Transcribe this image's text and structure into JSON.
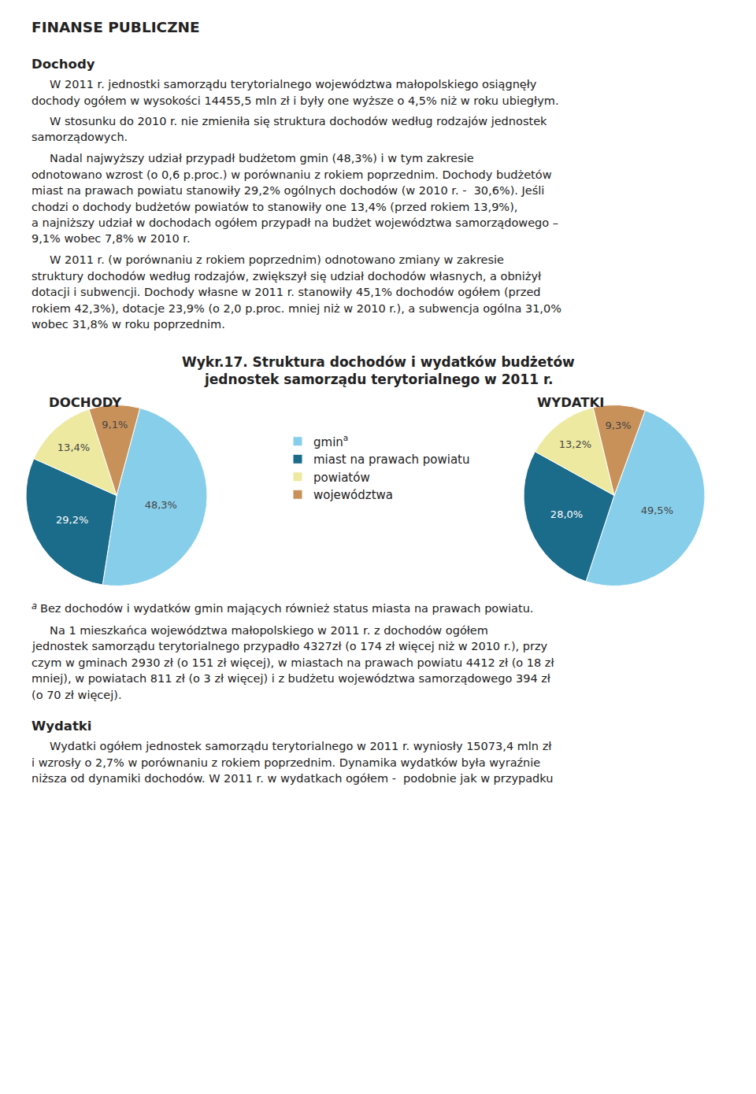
{
  "title": "FINANSE PUBLICZNE",
  "annotations_before": [
    {
      "heading": "Dochody"
    },
    {
      "paragraph": [
        "     W 2011 r. jednostki samorządu terytorialnego województwa małopolskiego osiągnęły",
        "dochody ogółem w wysokości 14455,5 mln zł i były one wyższe o 4,5% niż w roku ubiegłym."
      ]
    },
    {
      "paragraph": [
        "     W stosunku do 2010 r. nie zmieniła się struktura dochodów według rodzajów jednostek",
        "samorządowych."
      ]
    },
    {
      "paragraph": [
        "     Nadal najwyższy udział przypadł budżetom gmin (48,3%) i w tym zakresie",
        "odnotowano wzrost (o 0,6 p.proc.) w porównaniu z rokiem poprzednim. Dochody budżetów",
        "miast na prawach powiatu stanowiły 29,2% ogólnych dochodów (w 2010 r. -  30,6%). Jeśli",
        "chodzi o dochody budżetów powiatów to stanowiły one 13,4% (przed rokiem 13,9%),",
        "a najniższy udział w dochodach ogółem przypadł na budżet województwa samorządowego –",
        "9,1% wobec 7,8% w 2010 r."
      ]
    },
    {
      "paragraph": [
        "     W 2011 r. (w porównaniu z rokiem poprzednim) odnotowano zmiany w zakresie",
        "struktury dochodów według rodzajów, zwiększył się udział dochodów własnych, a obniżył",
        "dotacji i subwencji. Dochody własne w 2011 r. stanowiły 45,1% dochodów ogółem (przed",
        "rokiem 42,3%), dotacje 23,9% (o 2,0 p.proc. mniej niż w 2010 r.), a subwencja ogólna 31,0%",
        "wobec 31,8% w roku poprzednim."
      ]
    }
  ],
  "chart_title": [
    "Wykr.17. Struktura dochodów i wydatków budżetów",
    "jednostek samorządu terytorialnego w 2011 r."
  ],
  "chart_data": [
    {
      "type": "pie",
      "title": "DOCHODY",
      "categories": [
        "gmin",
        "miast na prawach powiatu",
        "powiatów",
        "województwa"
      ],
      "values": [
        48.3,
        29.2,
        13.4,
        9.1
      ],
      "value_labels": [
        "48,3%",
        "29,2%",
        "13,4%",
        "9,1%"
      ],
      "colors": [
        "#87CEEB",
        "#1B6B8A",
        "#EDE9A0",
        "#C8915A"
      ],
      "data_labels": true,
      "legend": "center"
    },
    {
      "type": "pie",
      "title": "WYDATKI",
      "categories": [
        "gmin",
        "miast na prawach powiatu",
        "powiatów",
        "województwa"
      ],
      "values": [
        49.5,
        28.0,
        13.2,
        9.3
      ],
      "value_labels": [
        "49,5%",
        "28,0%",
        "13,2%",
        "9,3%"
      ],
      "colors": [
        "#87CEEB",
        "#1B6B8A",
        "#EDE9A0",
        "#C8915A"
      ],
      "data_labels": true,
      "legend": "center"
    }
  ],
  "footnote": {
    "marker": "a",
    "category": "gmin",
    "text": "Bez dochodów i wydatków gmin mających również status miasta na prawach powiatu."
  },
  "annotations_after": [
    {
      "paragraph": [
        "     Na 1 mieszkańca województwa małopolskiego w 2011 r. z dochodów ogółem",
        "jednostek samorządu terytorialnego przypadło 4327zł (o 174 zł więcej niż w 2010 r.), przy",
        "czym w gminach 2930 zł (o 151 zł więcej), w miastach na prawach powiatu 4412 zł (o 18 zł",
        "mniej), w powiatach 811 zł (o 3 zł więcej) i z budżetu województwa samorządowego 394 zł",
        "(o 70 zł więcej)."
      ]
    },
    {
      "heading": "Wydatki"
    },
    {
      "paragraph": [
        "     Wydatki ogółem jednostek samorządu terytorialnego w 2011 r. wyniosły 15073,4 mln zł",
        "i wzrosły o 2,7% w porównaniu z rokiem poprzednim. Dynamika wydatków była wyraźnie",
        "niższa od dynamiki dochodów. W 2011 r. w wydatkach ogółem -  podobnie jak w przypadku"
      ]
    }
  ]
}
